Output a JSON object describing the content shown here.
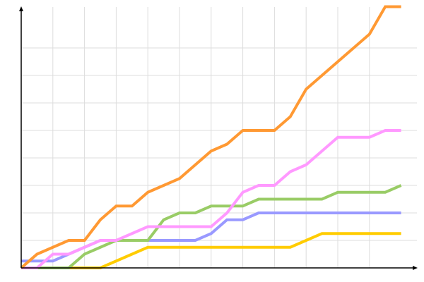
{
  "chart_data": {
    "type": "line",
    "title": "",
    "xlabel": "",
    "ylabel": "",
    "x": [
      0,
      1,
      2,
      3,
      4,
      5,
      6,
      7,
      8,
      9,
      10,
      11,
      12,
      13,
      14,
      15,
      16,
      17,
      18,
      19,
      20,
      21,
      22,
      23,
      24
    ],
    "ylim": [
      0,
      95
    ],
    "grid": true,
    "legend": "none",
    "series": [
      {
        "color": "#ffcc00",
        "values": [
          0,
          0,
          0,
          0,
          0,
          0,
          2.5,
          5,
          7.5,
          7.5,
          7.5,
          7.5,
          7.5,
          7.5,
          7.5,
          7.5,
          7.5,
          7.5,
          10,
          12.5,
          12.5,
          12.5,
          12.5,
          12.5,
          12.5
        ]
      },
      {
        "color": "#9999ff",
        "values": [
          2.5,
          2.5,
          2.5,
          5,
          7.5,
          10,
          10,
          10,
          10,
          10,
          10,
          10,
          12.5,
          17.5,
          17.5,
          20,
          20,
          20,
          20,
          20,
          20,
          20,
          20,
          20,
          20
        ]
      },
      {
        "color": "#99cc66",
        "values": [
          0,
          0,
          0,
          0,
          5,
          7.5,
          10,
          10,
          10,
          17.5,
          20,
          20,
          22.5,
          22.5,
          22.5,
          25,
          25,
          25,
          25,
          25,
          27.5,
          27.5,
          27.5,
          27.5,
          30
        ]
      },
      {
        "color": "#ff99ff",
        "values": [
          0,
          0,
          5,
          5,
          7.5,
          10,
          10,
          12.5,
          15,
          15,
          15,
          15,
          15,
          20,
          27.5,
          30,
          30,
          35,
          37.5,
          42.5,
          47.5,
          47.5,
          47.5,
          50,
          50
        ]
      },
      {
        "color": "#ff9933",
        "values": [
          0,
          5,
          7.5,
          10,
          10,
          17.5,
          22.5,
          22.5,
          27.5,
          30,
          32.5,
          37.5,
          42.5,
          45,
          50,
          50,
          50,
          55,
          65,
          70,
          75,
          80,
          85,
          95,
          95
        ]
      }
    ]
  }
}
